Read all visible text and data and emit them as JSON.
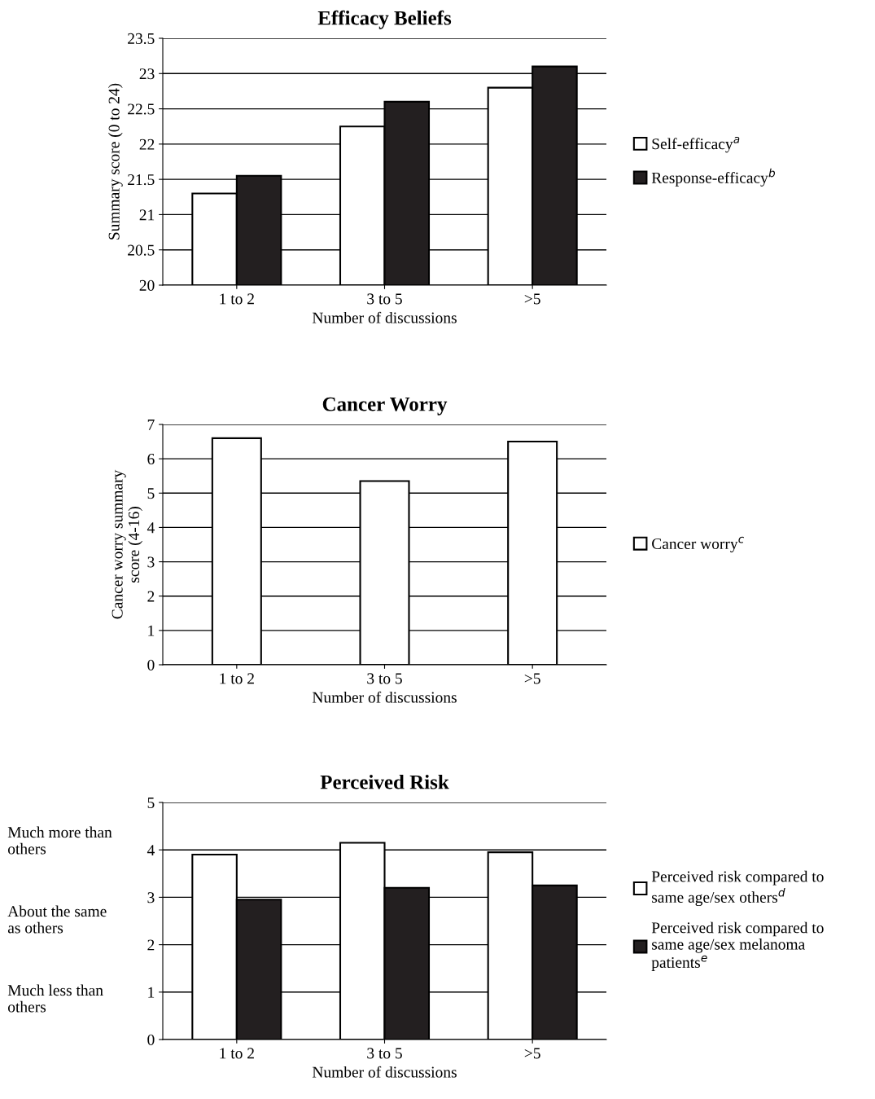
{
  "chart_data": [
    {
      "type": "bar",
      "title": "Efficacy Beliefs",
      "xlabel": "Number of discussions",
      "ylabel": "Summary score (0 to 24)",
      "categories": [
        "1 to 2",
        "3 to 5",
        ">5"
      ],
      "series": [
        {
          "name": "Self-efficacy$^{a}$",
          "color": "#ffffff",
          "values": [
            21.3,
            22.25,
            22.8
          ]
        },
        {
          "name": "Response-efficacy$^{b}$",
          "color": "#231f20",
          "values": [
            21.55,
            22.6,
            23.1
          ]
        }
      ],
      "ylim": [
        20,
        23.5
      ],
      "yticks": [
        20,
        20.5,
        21,
        21.5,
        22,
        22.5,
        23,
        23.5
      ],
      "grid": "y",
      "legend": "right"
    },
    {
      "type": "bar",
      "title": "Cancer Worry",
      "xlabel": "Number of discussions",
      "ylabel": "Cancer worry summary\nscore (4-16)",
      "categories": [
        "1 to 2",
        "3 to 5",
        ">5"
      ],
      "series": [
        {
          "name": "Cancer worry$^{c}$",
          "color": "#ffffff",
          "values": [
            6.6,
            5.35,
            6.5
          ]
        }
      ],
      "ylim": [
        0,
        7
      ],
      "yticks": [
        0,
        1,
        2,
        3,
        4,
        5,
        6,
        7
      ],
      "grid": "y",
      "legend": "right"
    },
    {
      "type": "bar",
      "title": "Perceived Risk",
      "xlabel": "Number of discussions",
      "categories": [
        "1 to 2",
        "3 to 5",
        ">5"
      ],
      "series": [
        {
          "name": "Perceived risk compared to\nsame age/sex others$^{d}$",
          "color": "#ffffff",
          "values": [
            3.9,
            4.15,
            3.95
          ]
        },
        {
          "name": "Perceived risk compared to\nsame age/sex melanoma\npatients$^{e}$",
          "color": "#231f20",
          "values": [
            2.95,
            3.2,
            3.25
          ]
        }
      ],
      "ylim": [
        0,
        5
      ],
      "yticks": [
        0,
        1,
        2,
        3,
        4,
        5
      ],
      "grid": "y",
      "legend": "right",
      "annotations": [
        "Much more than\nothers",
        "About the same\nas others",
        "Much less than\nothers"
      ]
    }
  ]
}
